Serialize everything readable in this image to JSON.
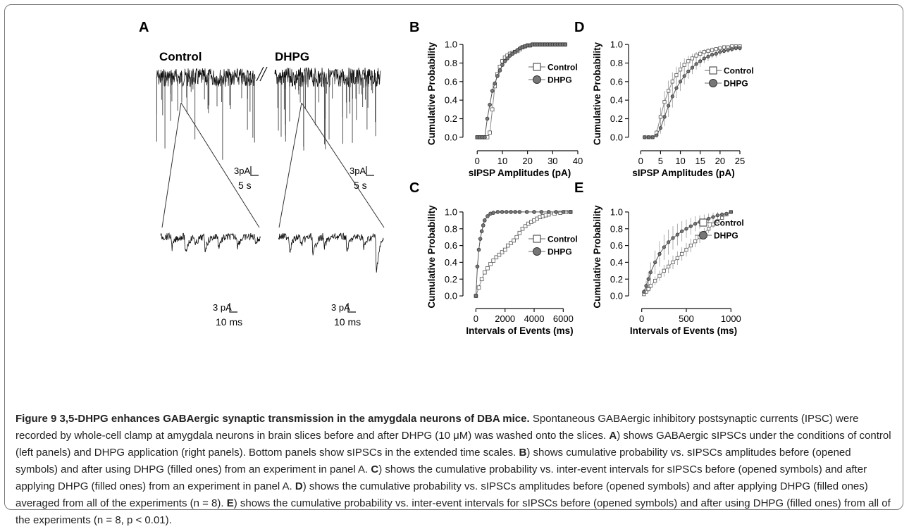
{
  "figure": {
    "panel_labels": [
      "A",
      "B",
      "C",
      "D",
      "E"
    ],
    "traces": {
      "control_label": "Control",
      "dhpg_label": "DHPG",
      "scale_long_current": "3pA",
      "scale_long_time": "5 s",
      "scale_short_current": "3 pA",
      "scale_short_time": "10 ms"
    },
    "legend": {
      "control": "Control",
      "dhpg": "DHPG"
    }
  },
  "chart_data": [
    {
      "panel": "B",
      "type": "line",
      "xlabel": "sIPSP Amplitudes (pA)",
      "ylabel": "Cumulative Probability",
      "xlim": [
        -4,
        40
      ],
      "ylim": [
        -0.1,
        1.1
      ],
      "xticks": [
        0,
        10,
        20,
        30,
        40
      ],
      "yticks": [
        0.0,
        0.2,
        0.4,
        0.6,
        0.8,
        1.0
      ],
      "xticklabels": [
        "0",
        "10",
        "20",
        "30",
        "40"
      ],
      "yticklabels": [
        "0.0",
        "0.2",
        "0.4",
        "0.6",
        "0.8",
        "1.0"
      ],
      "legend_position": "right",
      "error_bars": false,
      "series": [
        {
          "name": "Control",
          "marker": "open-square",
          "x": [
            0,
            1,
            2,
            3,
            4,
            5,
            6,
            7,
            8,
            9,
            10,
            11,
            12,
            13,
            14,
            15,
            16,
            17,
            18,
            19,
            20,
            21,
            22,
            23,
            24,
            25,
            26,
            27,
            28,
            29,
            30,
            31,
            32,
            33,
            34,
            35
          ],
          "y": [
            0.0,
            0.0,
            0.0,
            0.0,
            0.0,
            0.05,
            0.3,
            0.55,
            0.68,
            0.76,
            0.82,
            0.86,
            0.88,
            0.9,
            0.91,
            0.92,
            0.93,
            0.95,
            0.97,
            0.98,
            0.99,
            0.99,
            1.0,
            1.0,
            1.0,
            1.0,
            1.0,
            1.0,
            1.0,
            1.0,
            1.0,
            1.0,
            1.0,
            1.0,
            1.0,
            1.0
          ]
        },
        {
          "name": "DHPG",
          "marker": "filled-circle",
          "x": [
            0,
            1,
            2,
            3,
            4,
            5,
            6,
            7,
            8,
            9,
            10,
            11,
            12,
            13,
            14,
            15,
            16,
            17,
            18,
            19,
            20,
            21,
            22,
            23,
            24,
            25,
            26,
            27,
            28,
            29,
            30,
            31,
            32,
            33,
            34,
            35
          ],
          "y": [
            0.0,
            0.0,
            0.0,
            0.0,
            0.2,
            0.35,
            0.5,
            0.58,
            0.66,
            0.72,
            0.78,
            0.82,
            0.85,
            0.88,
            0.9,
            0.92,
            0.94,
            0.96,
            0.97,
            0.98,
            0.99,
            0.99,
            1.0,
            1.0,
            1.0,
            1.0,
            1.0,
            1.0,
            1.0,
            1.0,
            1.0,
            1.0,
            1.0,
            1.0,
            1.0,
            1.0
          ]
        }
      ]
    },
    {
      "panel": "C",
      "type": "line",
      "xlabel": "Intervals of Events (ms)",
      "ylabel": "Cumulative Probability",
      "xlim": [
        -600,
        7000
      ],
      "ylim": [
        -0.1,
        1.1
      ],
      "xticks": [
        0,
        2000,
        4000,
        6000
      ],
      "yticks": [
        0.0,
        0.2,
        0.4,
        0.6,
        0.8,
        1.0
      ],
      "xticklabels": [
        "0",
        "2000",
        "4000",
        "6000"
      ],
      "yticklabels": [
        "0.0",
        "0.2",
        "0.4",
        "0.6",
        "0.8",
        "1.0"
      ],
      "legend_position": "right",
      "error_bars": false,
      "series": [
        {
          "name": "Control",
          "marker": "open-square",
          "x": [
            0,
            200,
            400,
            600,
            800,
            1000,
            1200,
            1400,
            1600,
            1800,
            2000,
            2200,
            2400,
            2600,
            2800,
            3000,
            3200,
            3400,
            3600,
            3800,
            4000,
            4200,
            4400,
            4600,
            4800,
            5000,
            5400,
            5800,
            6200,
            6500
          ],
          "y": [
            0.0,
            0.1,
            0.2,
            0.28,
            0.33,
            0.38,
            0.42,
            0.46,
            0.49,
            0.52,
            0.55,
            0.6,
            0.63,
            0.66,
            0.7,
            0.75,
            0.8,
            0.83,
            0.86,
            0.88,
            0.9,
            0.92,
            0.94,
            0.95,
            0.96,
            0.97,
            0.98,
            0.99,
            1.0,
            1.0
          ]
        },
        {
          "name": "DHPG",
          "marker": "filled-circle",
          "x": [
            0,
            100,
            200,
            300,
            400,
            500,
            600,
            800,
            1000,
            1200,
            1500,
            1800,
            2100,
            2400,
            2700,
            3000,
            3500,
            4000,
            4500,
            5000,
            5500,
            6000,
            6500
          ],
          "y": [
            0.0,
            0.35,
            0.55,
            0.68,
            0.77,
            0.84,
            0.9,
            0.95,
            0.98,
            0.99,
            1.0,
            1.0,
            1.0,
            1.0,
            1.0,
            1.0,
            1.0,
            1.0,
            1.0,
            1.0,
            1.0,
            1.0,
            1.0
          ]
        }
      ]
    },
    {
      "panel": "D",
      "type": "line",
      "xlabel": "sIPSP Amplitudes (pA)",
      "ylabel": "Cumulative Probability",
      "xlim": [
        -2,
        25
      ],
      "ylim": [
        -0.1,
        1.1
      ],
      "xticks": [
        0,
        5,
        10,
        15,
        20,
        25
      ],
      "yticks": [
        0.0,
        0.2,
        0.4,
        0.6,
        0.8,
        1.0
      ],
      "xticklabels": [
        "0",
        "5",
        "10",
        "15",
        "20",
        "25"
      ],
      "yticklabels": [
        "0.0",
        "0.2",
        "0.4",
        "0.6",
        "0.8",
        "1.0"
      ],
      "legend_position": "right",
      "error_bars": true,
      "series": [
        {
          "name": "Control",
          "marker": "open-square",
          "x": [
            1,
            2,
            3,
            4,
            5,
            6,
            7,
            8,
            9,
            10,
            11,
            12,
            13,
            14,
            15,
            16,
            17,
            18,
            19,
            20,
            21,
            22,
            23,
            24,
            25
          ],
          "y": [
            0.0,
            0.0,
            0.0,
            0.05,
            0.22,
            0.38,
            0.5,
            0.6,
            0.67,
            0.73,
            0.78,
            0.82,
            0.85,
            0.88,
            0.9,
            0.92,
            0.93,
            0.94,
            0.95,
            0.96,
            0.97,
            0.97,
            0.98,
            0.98,
            0.98
          ],
          "err": [
            0,
            0,
            0,
            0.03,
            0.1,
            0.12,
            0.11,
            0.1,
            0.09,
            0.08,
            0.07,
            0.06,
            0.05,
            0.04,
            0.04,
            0.03,
            0.03,
            0.03,
            0.02,
            0.02,
            0.02,
            0.02,
            0.02,
            0.02,
            0.02
          ]
        },
        {
          "name": "DHPG",
          "marker": "filled-circle",
          "x": [
            1,
            2,
            3,
            4,
            5,
            6,
            7,
            8,
            9,
            10,
            11,
            12,
            13,
            14,
            15,
            16,
            17,
            18,
            19,
            20,
            21,
            22,
            23,
            24,
            25
          ],
          "y": [
            0.0,
            0.0,
            0.0,
            0.02,
            0.1,
            0.22,
            0.34,
            0.44,
            0.53,
            0.6,
            0.66,
            0.71,
            0.75,
            0.79,
            0.82,
            0.85,
            0.87,
            0.89,
            0.9,
            0.92,
            0.93,
            0.94,
            0.95,
            0.96,
            0.96
          ],
          "err": [
            0,
            0,
            0,
            0.02,
            0.06,
            0.1,
            0.12,
            0.12,
            0.11,
            0.1,
            0.09,
            0.08,
            0.07,
            0.06,
            0.06,
            0.05,
            0.05,
            0.04,
            0.04,
            0.04,
            0.03,
            0.03,
            0.03,
            0.03,
            0.03
          ]
        }
      ]
    },
    {
      "panel": "E",
      "type": "line",
      "xlabel": "Intervals of Events (ms)",
      "ylabel": "Cumulative Probability",
      "xlim": [
        -100,
        1100
      ],
      "ylim": [
        -0.1,
        1.1
      ],
      "xticks": [
        0,
        500,
        1000
      ],
      "yticks": [
        0.0,
        0.2,
        0.4,
        0.6,
        0.8,
        1.0
      ],
      "xticklabels": [
        "0",
        "500",
        "1000"
      ],
      "yticklabels": [
        "0.0",
        "0.2",
        "0.4",
        "0.6",
        "0.8",
        "1.0"
      ],
      "legend_position": "right",
      "error_bars": true,
      "series": [
        {
          "name": "Control",
          "marker": "open-square",
          "x": [
            25,
            50,
            75,
            100,
            150,
            200,
            250,
            300,
            350,
            400,
            450,
            500,
            550,
            600,
            650,
            700,
            750,
            800,
            850,
            900,
            950,
            1000
          ],
          "y": [
            0.02,
            0.05,
            0.08,
            0.12,
            0.18,
            0.24,
            0.3,
            0.35,
            0.4,
            0.45,
            0.5,
            0.55,
            0.6,
            0.65,
            0.7,
            0.75,
            0.8,
            0.85,
            0.89,
            0.93,
            0.97,
            1.0
          ],
          "err": [
            0.01,
            0.02,
            0.03,
            0.04,
            0.05,
            0.06,
            0.07,
            0.08,
            0.08,
            0.08,
            0.08,
            0.08,
            0.08,
            0.07,
            0.07,
            0.06,
            0.05,
            0.04,
            0.03,
            0.02,
            0.01,
            0.0
          ]
        },
        {
          "name": "DHPG",
          "marker": "filled-circle",
          "x": [
            25,
            50,
            75,
            100,
            150,
            200,
            250,
            300,
            350,
            400,
            450,
            500,
            550,
            600,
            650,
            700,
            750,
            800,
            850,
            900,
            950,
            1000
          ],
          "y": [
            0.05,
            0.12,
            0.2,
            0.28,
            0.4,
            0.5,
            0.58,
            0.64,
            0.69,
            0.73,
            0.77,
            0.8,
            0.83,
            0.86,
            0.88,
            0.9,
            0.92,
            0.94,
            0.96,
            0.97,
            0.98,
            1.0
          ],
          "err": [
            0.03,
            0.06,
            0.09,
            0.12,
            0.14,
            0.15,
            0.15,
            0.15,
            0.14,
            0.13,
            0.12,
            0.11,
            0.1,
            0.09,
            0.08,
            0.07,
            0.06,
            0.05,
            0.04,
            0.03,
            0.02,
            0.0
          ]
        }
      ]
    }
  ],
  "caption": {
    "title": "Figure 9 3,5-DHPG enhances GABAergic synaptic transmission in the amygdala neurons of DBA mice.",
    "intro": "Spontaneous GABAergic inhibitory postsynaptic currents (IPSC) were recorded by whole-cell clamp at amygdala neurons in brain slices before and after DHPG (10 μM) was washed onto the slices.",
    "A": "A",
    "A_text": ") shows GABAergic sIPSCs under the conditions of control (left panels) and DHPG application (right panels). Bottom panels show sIPSCs in the extended time scales.",
    "B": "B",
    "B_text": ") shows cumulative probability vs. sIPSCs amplitudes before (opened symbols) and after using DHPG (filled ones) from an experiment in panel A.",
    "C": "C",
    "C_text": ") shows the cumulative probability vs. inter-event intervals for sIPSCs before (opened symbols) and after applying DHPG (filled ones) from an experiment in panel A.",
    "D": "D",
    "D_text": ") shows the cumulative probability vs. sIPSCs amplitudes before (opened symbols) and after applying DHPG (filled ones) averaged from all of the experiments (n = 8).",
    "E": "E",
    "E_text": ") shows the cumulative probability vs. inter-event intervals for sIPSCs before (opened symbols) and after using DHPG (filled ones) from all of the experiments (n = 8, p < 0.01)."
  }
}
